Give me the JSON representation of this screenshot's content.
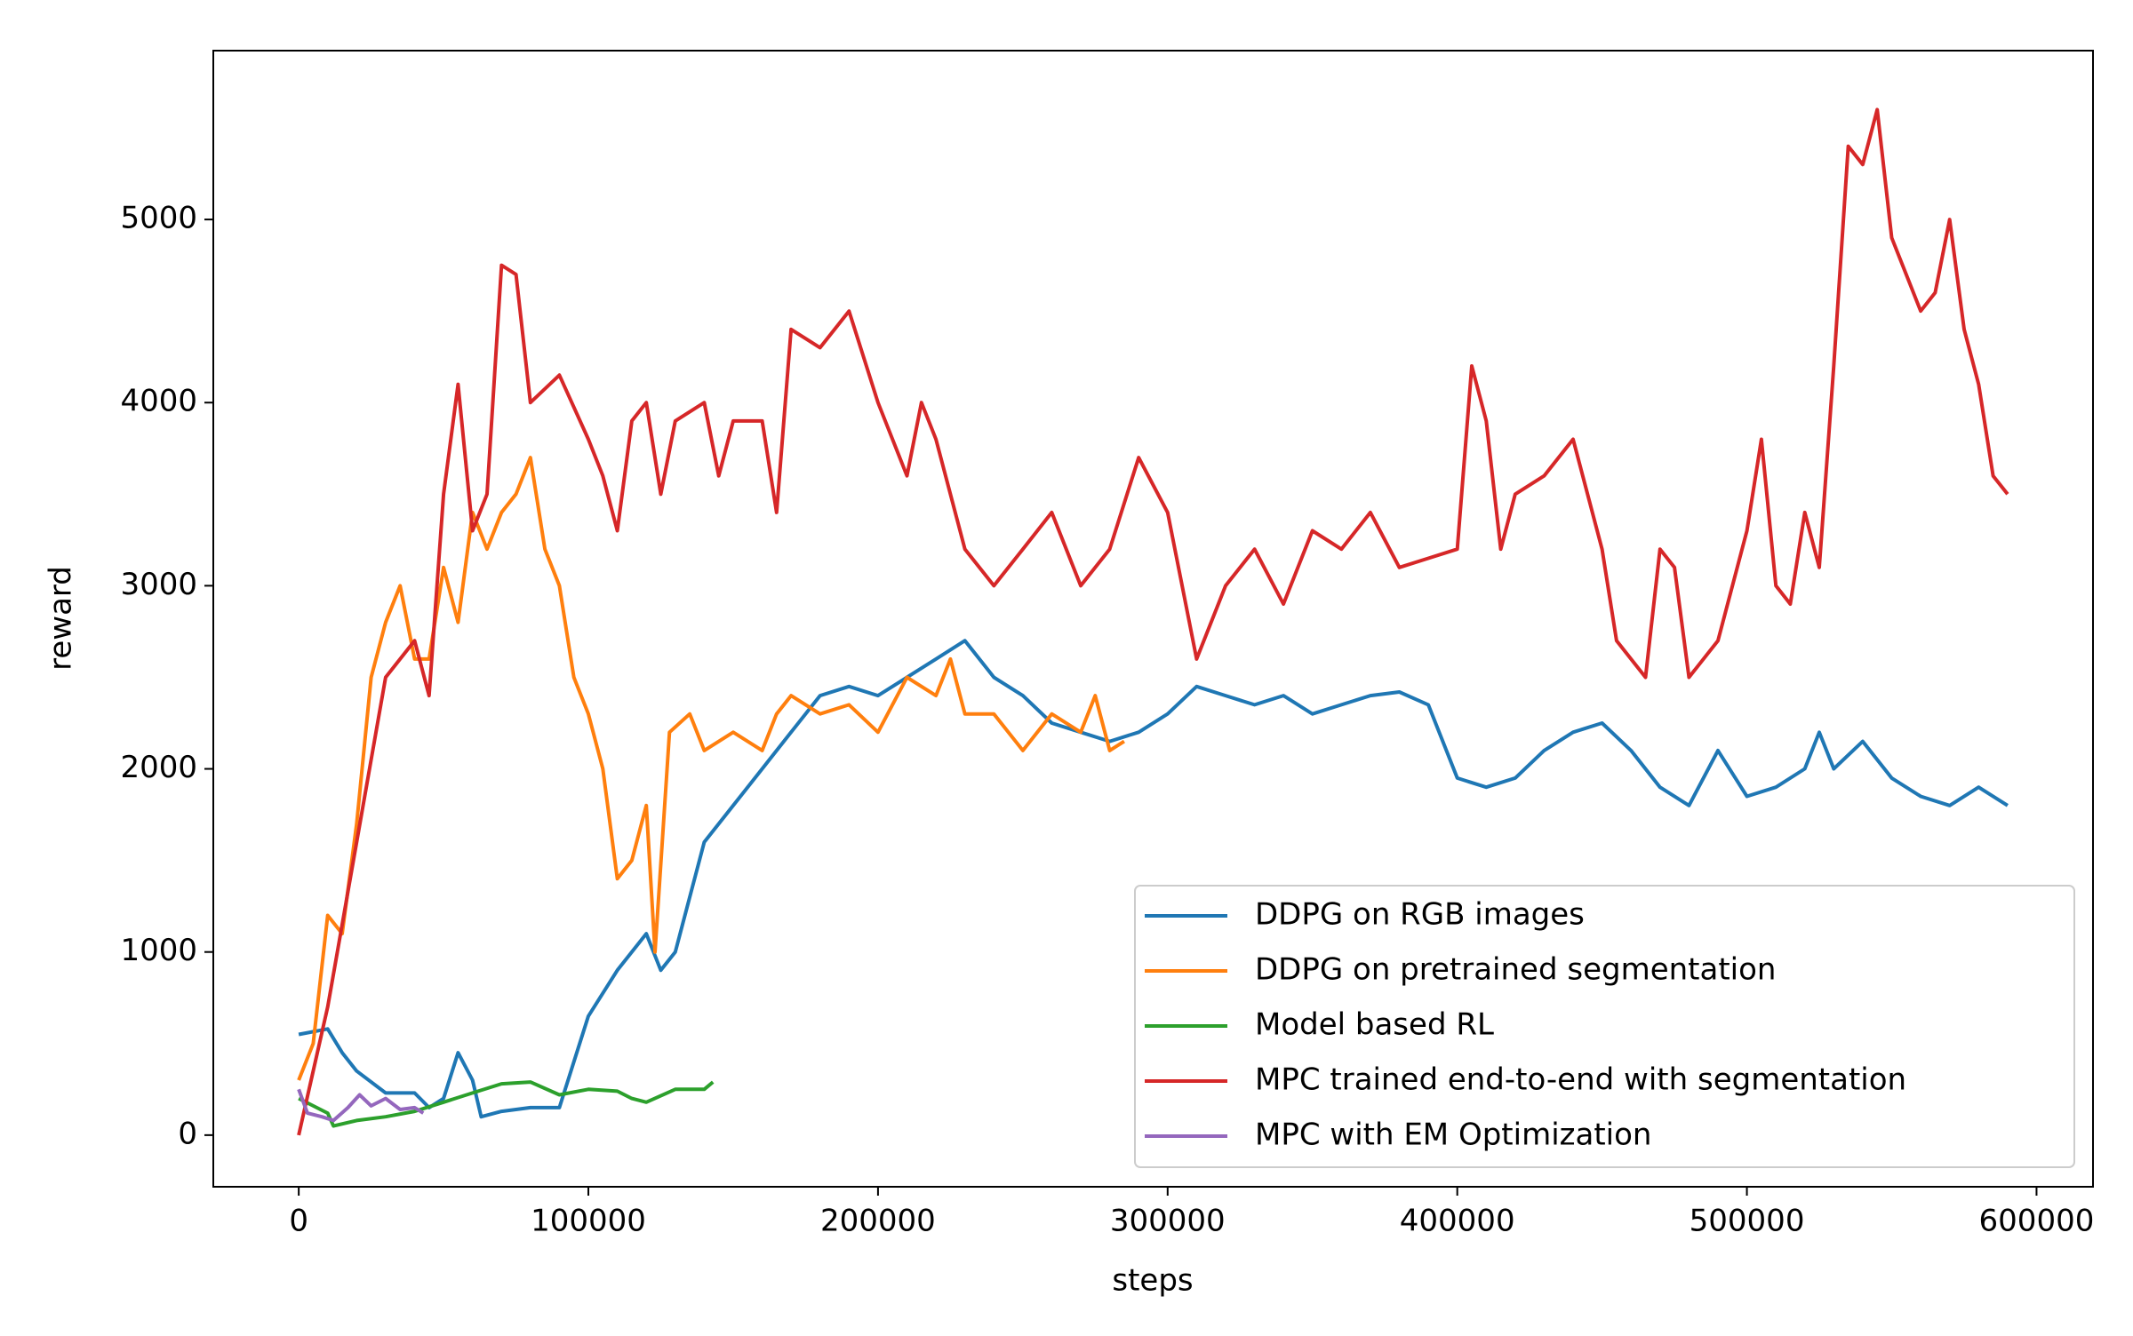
{
  "chart_data": {
    "type": "line",
    "xlabel": "steps",
    "ylabel": "reward",
    "xlim": [
      -29500,
      619500
    ],
    "ylim": [
      -282,
      5922
    ],
    "xticks": [
      0,
      100000,
      200000,
      300000,
      400000,
      500000,
      600000
    ],
    "yticks": [
      0,
      1000,
      2000,
      3000,
      4000,
      5000
    ],
    "grid": false,
    "legend": "lower right",
    "series": [
      {
        "name": "DDPG on RGB images",
        "color": "#1f77b4",
        "x": [
          0,
          10000,
          15000,
          20000,
          30000,
          40000,
          45000,
          50000,
          55000,
          60000,
          63000,
          70000,
          80000,
          90000,
          95000,
          100000,
          110000,
          120000,
          125000,
          130000,
          140000,
          150000,
          160000,
          170000,
          180000,
          190000,
          200000,
          210000,
          220000,
          230000,
          240000,
          250000,
          260000,
          270000,
          280000,
          290000,
          300000,
          310000,
          320000,
          330000,
          340000,
          350000,
          360000,
          370000,
          380000,
          390000,
          400000,
          410000,
          420000,
          430000,
          440000,
          450000,
          460000,
          470000,
          480000,
          490000,
          500000,
          510000,
          520000,
          525000,
          530000,
          540000,
          550000,
          560000,
          570000,
          580000,
          590000
        ],
        "values": [
          550,
          580,
          450,
          350,
          230,
          230,
          150,
          200,
          450,
          300,
          100,
          130,
          150,
          150,
          400,
          650,
          900,
          1100,
          900,
          1000,
          1600,
          1800,
          2000,
          2200,
          2400,
          2450,
          2400,
          2500,
          2600,
          2700,
          2500,
          2400,
          2250,
          2200,
          2150,
          2200,
          2300,
          2450,
          2400,
          2350,
          2400,
          2300,
          2350,
          2400,
          2420,
          2350,
          1950,
          1900,
          1950,
          2100,
          2200,
          2250,
          2100,
          1900,
          1800,
          2100,
          1850,
          1900,
          2000,
          2200,
          2000,
          2150,
          1950,
          1850,
          1800,
          1900,
          1800
        ]
      },
      {
        "name": "DDPG on pretrained segmentation",
        "color": "#ff7f0e",
        "x": [
          0,
          5000,
          10000,
          15000,
          20000,
          25000,
          30000,
          35000,
          40000,
          45000,
          50000,
          55000,
          60000,
          65000,
          70000,
          75000,
          80000,
          85000,
          90000,
          95000,
          100000,
          105000,
          110000,
          115000,
          120000,
          123000,
          128000,
          135000,
          140000,
          150000,
          160000,
          165000,
          170000,
          180000,
          190000,
          200000,
          210000,
          220000,
          225000,
          230000,
          240000,
          250000,
          260000,
          270000,
          275000,
          280000,
          285000
        ],
        "values": [
          300,
          500,
          1200,
          1100,
          1700,
          2500,
          2800,
          3000,
          2600,
          2600,
          3100,
          2800,
          3400,
          3200,
          3400,
          3500,
          3700,
          3200,
          3000,
          2500,
          2300,
          2000,
          1400,
          1500,
          1800,
          1000,
          2200,
          2300,
          2100,
          2200,
          2100,
          2300,
          2400,
          2300,
          2350,
          2200,
          2500,
          2400,
          2600,
          2300,
          2300,
          2100,
          2300,
          2200,
          2400,
          2100,
          2150
        ]
      },
      {
        "name": "Model based RL",
        "color": "#2ca02c",
        "x": [
          0,
          10000,
          12000,
          20000,
          30000,
          40000,
          50000,
          60000,
          70000,
          80000,
          90000,
          100000,
          110000,
          115000,
          120000,
          130000,
          140000,
          143000
        ],
        "values": [
          200,
          120,
          50,
          80,
          100,
          130,
          180,
          230,
          280,
          290,
          220,
          250,
          240,
          200,
          180,
          250,
          250,
          290
        ]
      },
      {
        "name": "MPC trained end-to-end with segmentation",
        "color": "#d62728",
        "x": [
          0,
          10000,
          20000,
          30000,
          40000,
          45000,
          50000,
          55000,
          60000,
          65000,
          70000,
          75000,
          80000,
          90000,
          100000,
          105000,
          110000,
          115000,
          120000,
          125000,
          130000,
          140000,
          145000,
          150000,
          160000,
          165000,
          170000,
          180000,
          190000,
          200000,
          210000,
          215000,
          220000,
          230000,
          240000,
          250000,
          260000,
          270000,
          280000,
          290000,
          300000,
          305000,
          310000,
          320000,
          330000,
          340000,
          350000,
          360000,
          370000,
          380000,
          390000,
          400000,
          405000,
          410000,
          415000,
          420000,
          430000,
          440000,
          450000,
          455000,
          465000,
          470000,
          475000,
          480000,
          490000,
          500000,
          505000,
          510000,
          515000,
          520000,
          525000,
          530000,
          535000,
          540000,
          545000,
          550000,
          555000,
          560000,
          565000,
          570000,
          575000,
          580000,
          585000,
          590000
        ],
        "values": [
          0,
          700,
          1600,
          2500,
          2700,
          2400,
          3500,
          4100,
          3300,
          3500,
          4750,
          4700,
          4000,
          4150,
          3800,
          3600,
          3300,
          3900,
          4000,
          3500,
          3900,
          4000,
          3600,
          3900,
          3900,
          3400,
          4400,
          4300,
          4500,
          4000,
          3600,
          4000,
          3800,
          3200,
          3000,
          3200,
          3400,
          3000,
          3200,
          3700,
          3400,
          3000,
          2600,
          3000,
          3200,
          2900,
          3300,
          3200,
          3400,
          3100,
          3150,
          3200,
          4200,
          3900,
          3200,
          3500,
          3600,
          3800,
          3200,
          2700,
          2500,
          3200,
          3100,
          2500,
          2700,
          3300,
          3800,
          3000,
          2900,
          3400,
          3100,
          4200,
          5400,
          5300,
          5600,
          4900,
          4700,
          4500,
          4600,
          5000,
          4400,
          4100,
          3600,
          3500
        ]
      },
      {
        "name": "MPC with EM Optimization",
        "color": "#9467bd",
        "x": [
          0,
          3000,
          8000,
          12000,
          17000,
          21000,
          25000,
          30000,
          35000,
          40000,
          43000
        ],
        "values": [
          250,
          120,
          100,
          80,
          150,
          220,
          160,
          200,
          140,
          150,
          120
        ]
      }
    ]
  }
}
